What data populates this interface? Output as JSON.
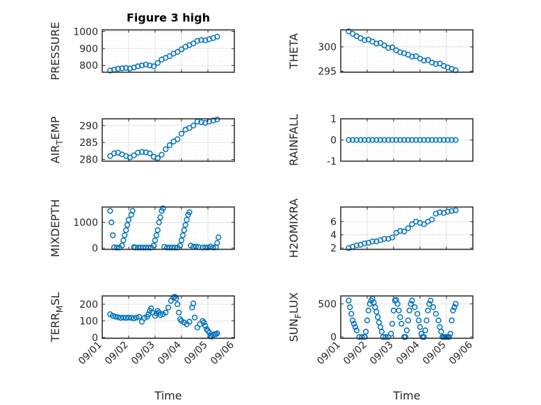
{
  "figure": {
    "title": "Figure 3 high"
  },
  "colors": {
    "marker": "#0072BD",
    "axis": "#262626",
    "grid": "#dcdcdc"
  },
  "chart_data": [
    {
      "type": "scatter",
      "title": "Figure 3 high",
      "ylabel": "PRESSURE",
      "xlim": [
        1,
        6
      ],
      "ylim": [
        760,
        1010
      ],
      "yticks": [
        800,
        900,
        1000
      ],
      "xticklabels": [],
      "grid": true,
      "x": [
        1.3,
        1.45,
        1.6,
        1.75,
        1.9,
        2.05,
        2.2,
        2.35,
        2.5,
        2.65,
        2.8,
        2.95,
        3.1,
        3.25,
        3.4,
        3.55,
        3.7,
        3.85,
        4.0,
        4.15,
        4.3,
        4.45,
        4.6,
        4.75,
        4.9,
        5.05,
        5.2,
        5.35
      ],
      "y": [
        770,
        775,
        780,
        783,
        785,
        782,
        788,
        795,
        800,
        805,
        800,
        795,
        815,
        835,
        845,
        855,
        870,
        880,
        895,
        910,
        920,
        930,
        945,
        950,
        948,
        955,
        962,
        970
      ]
    },
    {
      "type": "scatter",
      "ylabel": "THETA",
      "xlim": [
        1,
        6
      ],
      "ylim": [
        294.8,
        303.5
      ],
      "yticks": [
        295,
        300
      ],
      "xticklabels": [],
      "grid": true,
      "x": [
        1.3,
        1.45,
        1.6,
        1.75,
        1.9,
        2.05,
        2.2,
        2.35,
        2.5,
        2.65,
        2.8,
        2.95,
        3.1,
        3.25,
        3.4,
        3.55,
        3.7,
        3.85,
        4.0,
        4.15,
        4.3,
        4.45,
        4.6,
        4.75,
        4.9,
        5.05,
        5.2,
        5.35
      ],
      "y": [
        303.2,
        302.7,
        302.2,
        301.8,
        301.4,
        301.5,
        301.1,
        300.7,
        300.8,
        300.3,
        299.8,
        299.9,
        299.3,
        298.9,
        298.7,
        298.4,
        298.0,
        298.1,
        297.6,
        297.2,
        297.3,
        296.8,
        296.5,
        296.6,
        296.1,
        295.8,
        295.5,
        295.2
      ]
    },
    {
      "type": "scatter",
      "ylabel": "AIR_TEMP",
      "xlim": [
        1,
        6
      ],
      "ylim": [
        279.5,
        292
      ],
      "yticks": [
        280,
        285,
        290
      ],
      "xticklabels": [],
      "grid": true,
      "x": [
        1.3,
        1.45,
        1.6,
        1.75,
        1.9,
        2.05,
        2.2,
        2.35,
        2.5,
        2.65,
        2.8,
        2.95,
        3.1,
        3.25,
        3.4,
        3.55,
        3.7,
        3.85,
        4.0,
        4.15,
        4.3,
        4.45,
        4.6,
        4.75,
        4.9,
        5.05,
        5.2,
        5.35
      ],
      "y": [
        281.0,
        281.8,
        282.0,
        281.5,
        281.0,
        280.6,
        281.2,
        282.0,
        282.2,
        282.1,
        281.8,
        280.8,
        280.4,
        281.4,
        283.0,
        284.2,
        285.3,
        286.0,
        287.6,
        288.8,
        289.3,
        290.0,
        291.2,
        291.0,
        290.8,
        291.2,
        291.5,
        291.8
      ]
    },
    {
      "type": "scatter",
      "ylabel": "RAINFALL",
      "xlim": [
        1,
        6
      ],
      "ylim": [
        -1,
        1
      ],
      "yticks": [
        -1,
        0,
        1
      ],
      "xticklabels": [],
      "grid": true,
      "x": [
        1.3,
        1.45,
        1.6,
        1.75,
        1.9,
        2.05,
        2.2,
        2.35,
        2.5,
        2.65,
        2.8,
        2.95,
        3.1,
        3.25,
        3.4,
        3.55,
        3.7,
        3.85,
        4.0,
        4.15,
        4.3,
        4.45,
        4.6,
        4.75,
        4.9,
        5.05,
        5.2,
        5.35
      ],
      "y": [
        0,
        0,
        0,
        0,
        0,
        0,
        0,
        0,
        0,
        0,
        0,
        0,
        0,
        0,
        0,
        0,
        0,
        0,
        0,
        0,
        0,
        0,
        0,
        0,
        0,
        0,
        0,
        0
      ]
    },
    {
      "type": "scatter",
      "ylabel": "MIXDEPTH",
      "xlim": [
        1,
        6
      ],
      "ylim": [
        -50,
        1600
      ],
      "yticks": [
        0,
        1000
      ],
      "xticklabels": [],
      "grid": true,
      "x": [
        1.3,
        1.35,
        1.4,
        1.45,
        1.55,
        1.65,
        1.75,
        1.8,
        1.85,
        1.9,
        1.95,
        2.0,
        2.1,
        2.15,
        2.2,
        2.25,
        2.35,
        2.45,
        2.55,
        2.65,
        2.75,
        2.85,
        2.95,
        3.0,
        3.05,
        3.1,
        3.15,
        3.2,
        3.25,
        3.3,
        3.35,
        3.45,
        3.55,
        3.65,
        3.75,
        3.85,
        3.95,
        4.0,
        4.05,
        4.1,
        4.15,
        4.2,
        4.25,
        4.3,
        4.35,
        4.45,
        4.55,
        4.65,
        4.8,
        4.9,
        5.0,
        5.1,
        5.2,
        5.3,
        5.35,
        5.4
      ],
      "y": [
        1450,
        1000,
        500,
        30,
        20,
        20,
        100,
        300,
        500,
        700,
        900,
        1100,
        1300,
        1450,
        40,
        20,
        20,
        20,
        20,
        20,
        20,
        20,
        100,
        300,
        500,
        700,
        1000,
        1200,
        1450,
        1550,
        50,
        20,
        20,
        20,
        20,
        20,
        100,
        300,
        500,
        700,
        900,
        1100,
        1300,
        1400,
        100,
        50,
        60,
        40,
        20,
        30,
        20,
        60,
        20,
        30,
        200,
        420
      ]
    },
    {
      "type": "scatter",
      "ylabel": "H2OMIXRA",
      "xlim": [
        1,
        6
      ],
      "ylim": [
        1.8,
        8.2
      ],
      "yticks": [
        2,
        4,
        6
      ],
      "xticklabels": [],
      "grid": true,
      "x": [
        1.3,
        1.45,
        1.6,
        1.75,
        1.9,
        2.05,
        2.2,
        2.35,
        2.5,
        2.65,
        2.8,
        2.95,
        3.1,
        3.25,
        3.4,
        3.55,
        3.7,
        3.85,
        4.0,
        4.15,
        4.3,
        4.45,
        4.6,
        4.75,
        4.9,
        5.05,
        5.2,
        5.35
      ],
      "y": [
        2.0,
        2.2,
        2.4,
        2.5,
        2.7,
        2.8,
        3.0,
        3.0,
        3.2,
        3.4,
        3.4,
        3.6,
        4.3,
        4.6,
        4.5,
        5.0,
        5.6,
        6.0,
        5.8,
        5.6,
        6.0,
        6.3,
        7.2,
        7.4,
        7.3,
        7.5,
        7.6,
        7.7
      ]
    },
    {
      "type": "scatter",
      "ylabel": "TERR_MSL",
      "xlabel": "Time",
      "xlim": [
        1,
        6
      ],
      "ylim": [
        -5,
        250
      ],
      "yticks": [
        0,
        100,
        200
      ],
      "xticklabels": [
        "09/01",
        "09/02",
        "09/03",
        "09/04",
        "09/05",
        "09/06"
      ],
      "grid": true,
      "x": [
        1.3,
        1.4,
        1.5,
        1.6,
        1.7,
        1.8,
        1.9,
        2.0,
        2.1,
        2.2,
        2.3,
        2.4,
        2.5,
        2.6,
        2.7,
        2.75,
        2.8,
        2.85,
        2.9,
        3.0,
        3.05,
        3.1,
        3.15,
        3.2,
        3.3,
        3.4,
        3.5,
        3.6,
        3.7,
        3.75,
        3.8,
        3.85,
        3.9,
        3.95,
        4.0,
        4.1,
        4.2,
        4.3,
        4.4,
        4.45,
        4.5,
        4.6,
        4.7,
        4.8,
        4.85,
        4.9,
        4.95,
        5.0,
        5.05,
        5.1,
        5.15,
        5.2,
        5.25,
        5.3,
        5.35
      ],
      "y": [
        140,
        130,
        125,
        122,
        118,
        120,
        118,
        120,
        118,
        115,
        120,
        125,
        95,
        118,
        125,
        140,
        160,
        175,
        150,
        130,
        145,
        160,
        150,
        135,
        140,
        150,
        180,
        220,
        240,
        245,
        235,
        200,
        150,
        110,
        100,
        90,
        80,
        95,
        180,
        205,
        120,
        60,
        80,
        100,
        90,
        70,
        50,
        40,
        30,
        10,
        5,
        15,
        20,
        20,
        25
      ]
    },
    {
      "type": "scatter",
      "ylabel": "SUN_FLUX",
      "xlabel": "Time",
      "xlim": [
        1,
        6
      ],
      "ylim": [
        -20,
        620
      ],
      "yticks": [
        0,
        500
      ],
      "xticklabels": [
        "09/01",
        "09/02",
        "09/03",
        "09/04",
        "09/05",
        "09/06"
      ],
      "grid": true,
      "x": [
        1.3,
        1.35,
        1.4,
        1.45,
        1.5,
        1.55,
        1.6,
        1.7,
        1.8,
        1.9,
        1.95,
        2.0,
        2.05,
        2.1,
        2.15,
        2.2,
        2.25,
        2.3,
        2.35,
        2.4,
        2.45,
        2.5,
        2.55,
        2.6,
        2.7,
        2.8,
        2.9,
        2.95,
        3.0,
        3.05,
        3.1,
        3.15,
        3.2,
        3.25,
        3.3,
        3.4,
        3.45,
        3.5,
        3.55,
        3.6,
        3.65,
        3.7,
        3.8,
        3.9,
        3.95,
        4.0,
        4.05,
        4.1,
        4.15,
        4.2,
        4.25,
        4.3,
        4.35,
        4.4,
        4.5,
        4.6,
        4.7,
        4.75,
        4.8,
        4.85,
        4.9,
        4.95,
        5.0,
        5.05,
        5.1,
        5.15,
        5.2,
        5.25,
        5.3,
        5.35
      ],
      "y": [
        550,
        450,
        350,
        250,
        200,
        150,
        100,
        0,
        0,
        0,
        80,
        250,
        400,
        500,
        550,
        580,
        520,
        450,
        380,
        300,
        220,
        150,
        80,
        0,
        0,
        0,
        50,
        200,
        400,
        550,
        560,
        500,
        400,
        300,
        200,
        0,
        0,
        100,
        250,
        400,
        500,
        550,
        450,
        350,
        250,
        150,
        50,
        0,
        0,
        100,
        250,
        400,
        500,
        550,
        450,
        350,
        250,
        150,
        80,
        0,
        0,
        0,
        0,
        0,
        0,
        50,
        250,
        400,
        450,
        500
      ]
    }
  ]
}
